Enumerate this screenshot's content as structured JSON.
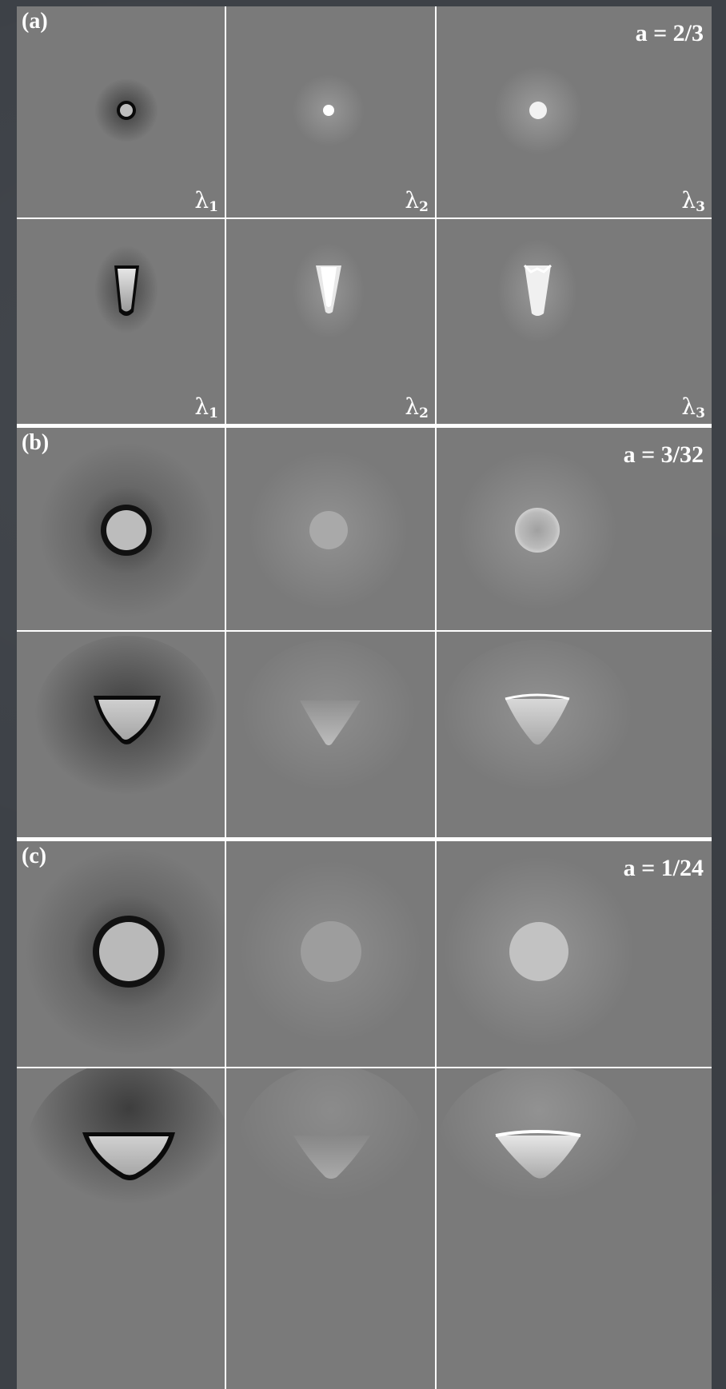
{
  "figure": {
    "panels": [
      {
        "id": "a",
        "label": "(a)",
        "param_label": "a = 2/3",
        "rows": [
          {
            "shape": "circle",
            "size": 1.0,
            "eigen_labels": [
              "λ",
              "λ",
              "λ"
            ],
            "eigen_subs": [
              "1",
              "2",
              "3"
            ]
          },
          {
            "shape": "cone",
            "size": 1.0,
            "eigen_labels": [
              "λ",
              "λ",
              "λ"
            ],
            "eigen_subs": [
              "1",
              "2",
              "3"
            ]
          }
        ]
      },
      {
        "id": "b",
        "label": "(b)",
        "param_label": "a = 3/32",
        "rows": [
          {
            "shape": "circle",
            "size": 2.0
          },
          {
            "shape": "cone",
            "size": 2.0
          }
        ]
      },
      {
        "id": "c",
        "label": "(c)",
        "param_label": "a = 1/24",
        "rows": [
          {
            "shape": "circle",
            "size": 3.0
          },
          {
            "shape": "cone",
            "size": 3.0
          }
        ]
      }
    ]
  }
}
